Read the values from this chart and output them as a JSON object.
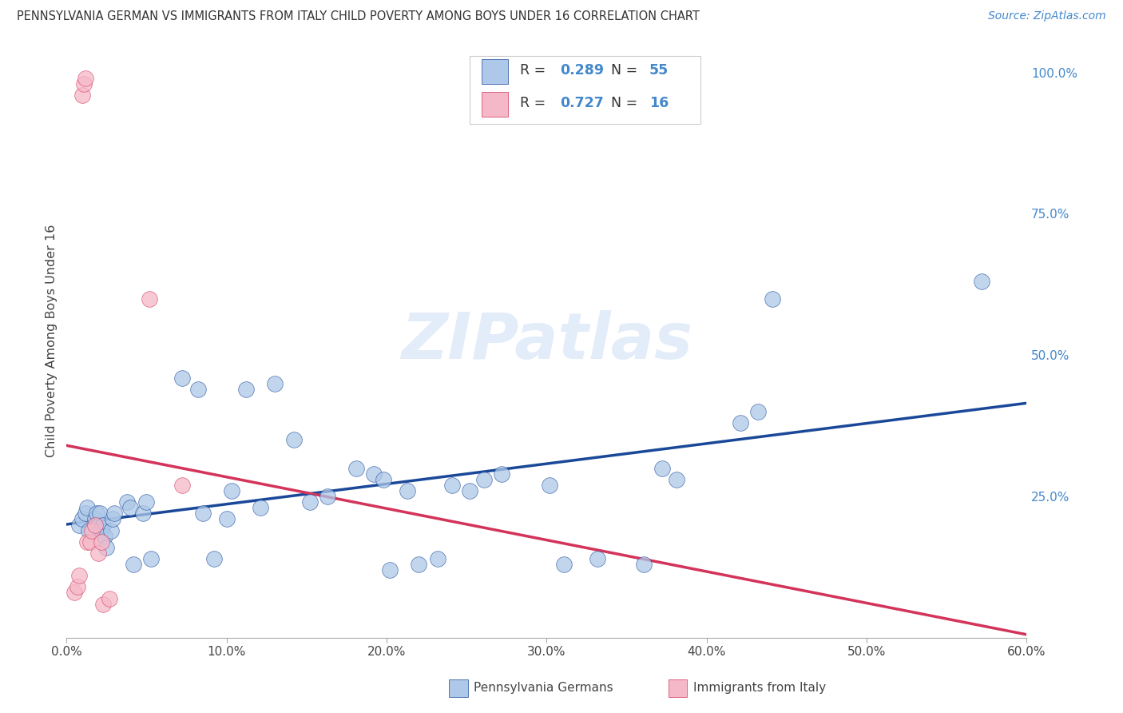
{
  "title": "PENNSYLVANIA GERMAN VS IMMIGRANTS FROM ITALY CHILD POVERTY AMONG BOYS UNDER 16 CORRELATION CHART",
  "source": "Source: ZipAtlas.com",
  "ylabel": "Child Poverty Among Boys Under 16",
  "xlim": [
    0.0,
    0.6
  ],
  "ylim": [
    0.0,
    1.05
  ],
  "blue_R": 0.289,
  "blue_N": 55,
  "pink_R": 0.727,
  "pink_N": 16,
  "blue_color": "#adc8e8",
  "pink_color": "#f5b8c8",
  "blue_line_color": "#1a4899",
  "pink_line_color": "#d4345a",
  "watermark": "ZIPatlas",
  "xticks": [
    0.0,
    0.1,
    0.2,
    0.3,
    0.4,
    0.5,
    0.6
  ],
  "xtick_labels": [
    "0.0%",
    "10.0%",
    "20.0%",
    "30.0%",
    "40.0%",
    "50.0%",
    "60.0%"
  ],
  "yticks": [
    0.0,
    0.25,
    0.5,
    0.75,
    1.0
  ],
  "ytick_labels": [
    "",
    "25.0%",
    "50.0%",
    "75.0%",
    "100.0%"
  ],
  "blue_x": [
    0.008,
    0.01,
    0.012,
    0.013,
    0.014,
    0.018,
    0.019,
    0.02,
    0.021,
    0.022,
    0.023,
    0.024,
    0.025,
    0.028,
    0.029,
    0.03,
    0.038,
    0.04,
    0.042,
    0.048,
    0.05,
    0.053,
    0.072,
    0.082,
    0.085,
    0.092,
    0.1,
    0.103,
    0.112,
    0.121,
    0.13,
    0.142,
    0.152,
    0.163,
    0.181,
    0.192,
    0.198,
    0.202,
    0.213,
    0.22,
    0.232,
    0.241,
    0.252,
    0.261,
    0.272,
    0.302,
    0.311,
    0.332,
    0.361,
    0.372,
    0.381,
    0.421,
    0.432,
    0.441,
    0.572
  ],
  "blue_y": [
    0.2,
    0.21,
    0.22,
    0.23,
    0.19,
    0.21,
    0.22,
    0.2,
    0.22,
    0.19,
    0.2,
    0.18,
    0.16,
    0.19,
    0.21,
    0.22,
    0.24,
    0.23,
    0.13,
    0.22,
    0.24,
    0.14,
    0.46,
    0.44,
    0.22,
    0.14,
    0.21,
    0.26,
    0.44,
    0.23,
    0.45,
    0.35,
    0.24,
    0.25,
    0.3,
    0.29,
    0.28,
    0.12,
    0.26,
    0.13,
    0.14,
    0.27,
    0.26,
    0.28,
    0.29,
    0.27,
    0.13,
    0.14,
    0.13,
    0.3,
    0.28,
    0.38,
    0.4,
    0.6,
    0.63
  ],
  "pink_x": [
    0.005,
    0.007,
    0.008,
    0.01,
    0.011,
    0.012,
    0.013,
    0.015,
    0.016,
    0.018,
    0.02,
    0.022,
    0.023,
    0.027,
    0.052,
    0.072
  ],
  "pink_y": [
    0.08,
    0.09,
    0.11,
    0.96,
    0.98,
    0.99,
    0.17,
    0.17,
    0.19,
    0.2,
    0.15,
    0.17,
    0.06,
    0.07,
    0.6,
    0.27
  ],
  "legend_label_blue": "Pennsylvania Germans",
  "legend_label_pink": "Immigrants from Italy"
}
